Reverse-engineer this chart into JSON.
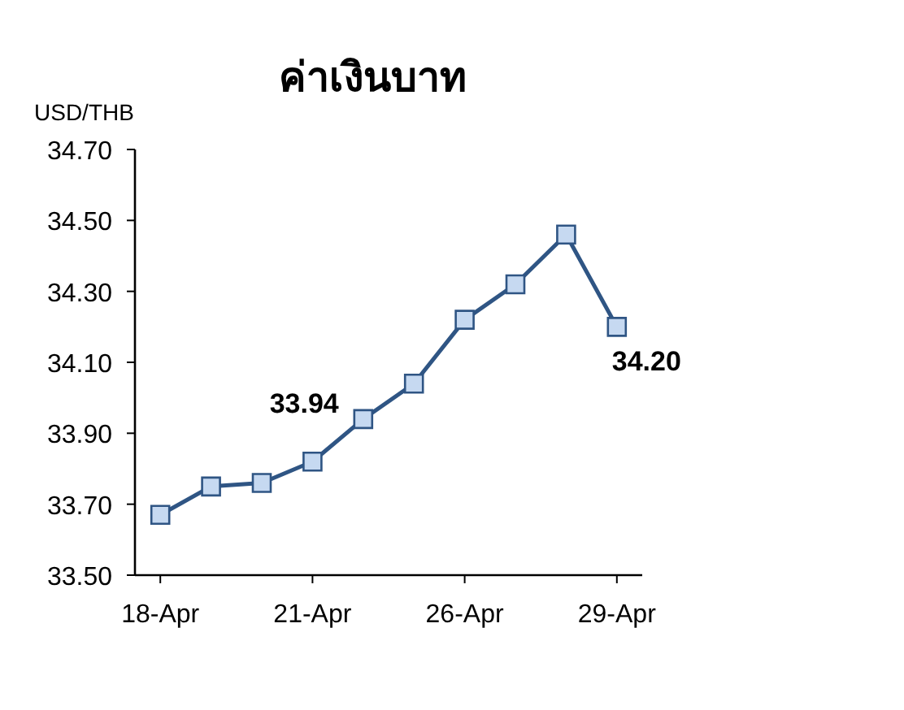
{
  "chart_data": {
    "type": "line",
    "title": "ค่าเงินบาท",
    "ylabel": "USD/THB",
    "categories": [
      "18-Apr",
      null,
      null,
      "21-Apr",
      null,
      null,
      "26-Apr",
      null,
      null,
      "29-Apr"
    ],
    "series": [
      {
        "color": "#2f5584",
        "values": [
          33.67,
          33.75,
          33.76,
          33.82,
          33.94,
          34.04,
          34.22,
          34.32,
          34.46,
          34.2
        ],
        "value_labels": [
          null,
          null,
          null,
          null,
          "33.94",
          null,
          null,
          null,
          null,
          "34.20"
        ]
      }
    ],
    "ylim": [
      33.5,
      34.7
    ],
    "yticks": [
      {
        "value": 33.5,
        "label": "33.50"
      },
      {
        "value": 33.7,
        "label": "33.70"
      },
      {
        "value": 33.9,
        "label": "33.90"
      },
      {
        "value": 34.1,
        "label": "34.10"
      },
      {
        "value": 34.3,
        "label": "34.30"
      },
      {
        "value": 34.5,
        "label": "34.50"
      },
      {
        "value": 34.7,
        "label": "34.70"
      }
    ],
    "grid": false,
    "marker": "square",
    "line_style": "solid"
  }
}
